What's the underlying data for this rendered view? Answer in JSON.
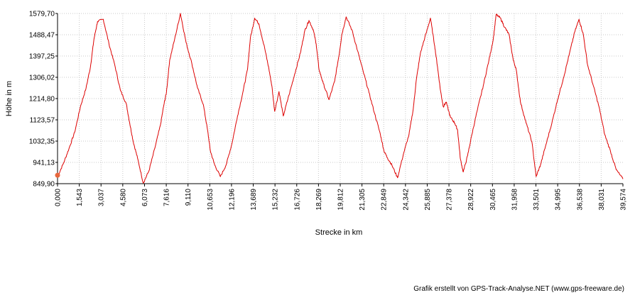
{
  "chart_data": {
    "type": "line",
    "xlabel": "Strecke  in  km",
    "ylabel": "Höhe  in  m",
    "xlim": [
      0,
      39.574
    ],
    "ylim": [
      849.9,
      1579.7
    ],
    "grid": true,
    "x_ticks": [
      "0,000",
      "1,543",
      "3,037",
      "4,580",
      "6,073",
      "7,616",
      "9,110",
      "10,653",
      "12,196",
      "13,689",
      "15,232",
      "16,726",
      "18,269",
      "19,812",
      "21,305",
      "22,849",
      "24,342",
      "25,885",
      "27,378",
      "28,922",
      "30,465",
      "31,958",
      "33,501",
      "34,995",
      "36,538",
      "38,031",
      "39,574"
    ],
    "y_ticks": [
      "849,90",
      "941,13",
      "1032,35",
      "1123,57",
      "1214,80",
      "1306,02",
      "1397,25",
      "1488,47",
      "1579,70"
    ],
    "line_color": "#dd0000",
    "start_marker_color": "#e8673c",
    "series": [
      {
        "x": [
          0.0,
          0.4,
          0.8,
          1.2,
          1.6,
          2.0,
          2.3,
          2.55,
          2.8,
          3.2,
          3.6,
          4.0,
          4.4,
          4.8,
          5.05,
          5.3,
          5.6,
          6.0,
          6.4,
          6.8,
          7.2,
          7.45,
          7.62,
          7.85,
          8.2,
          8.6,
          9.0,
          9.4,
          9.8,
          10.2,
          10.5,
          10.7,
          11.0,
          11.4,
          11.8,
          12.2,
          12.6,
          13.0,
          13.3,
          13.5,
          13.8,
          14.1,
          14.5,
          14.8,
          15.0,
          15.2,
          15.5,
          15.8,
          16.2,
          16.6,
          17.0,
          17.3,
          17.6,
          17.9,
          18.1,
          18.3,
          18.6,
          19.0,
          19.4,
          19.7,
          19.9,
          20.2,
          20.6,
          21.0,
          21.4,
          21.8,
          22.2,
          22.6,
          22.85,
          23.1,
          23.4,
          23.8,
          24.2,
          24.6,
          24.9,
          25.1,
          25.4,
          25.8,
          26.1,
          26.4,
          26.6,
          26.8,
          27.0,
          27.2,
          27.5,
          27.8,
          28.0,
          28.2,
          28.4,
          28.7,
          29.0,
          29.4,
          29.8,
          30.2,
          30.5,
          30.7,
          31.0,
          31.3,
          31.6,
          31.9,
          32.1,
          32.4,
          32.8,
          33.2,
          33.5,
          33.8,
          34.2,
          34.6,
          35.0,
          35.4,
          35.8,
          36.2,
          36.5,
          36.8,
          37.1,
          37.5,
          37.9,
          38.3,
          38.7,
          39.1,
          39.574
        ],
        "y": [
          880,
          935,
          1000,
          1070,
          1180,
          1260,
          1350,
          1470,
          1545,
          1555,
          1450,
          1360,
          1250,
          1195,
          1110,
          1030,
          960,
          852,
          905,
          1000,
          1100,
          1190,
          1240,
          1380,
          1470,
          1580,
          1455,
          1365,
          1260,
          1190,
          1080,
          990,
          930,
          880,
          930,
          1020,
          1140,
          1250,
          1340,
          1475,
          1560,
          1535,
          1430,
          1340,
          1270,
          1160,
          1245,
          1140,
          1230,
          1320,
          1410,
          1505,
          1550,
          1510,
          1450,
          1340,
          1280,
          1210,
          1290,
          1400,
          1490,
          1565,
          1510,
          1420,
          1330,
          1240,
          1150,
          1060,
          990,
          960,
          930,
          875,
          975,
          1060,
          1170,
          1290,
          1410,
          1495,
          1560,
          1440,
          1350,
          1250,
          1180,
          1200,
          1135,
          1110,
          1080,
          955,
          900,
          970,
          1060,
          1170,
          1270,
          1380,
          1470,
          1575,
          1560,
          1520,
          1490,
          1380,
          1340,
          1200,
          1110,
          1030,
          880,
          930,
          1020,
          1110,
          1210,
          1300,
          1400,
          1500,
          1555,
          1490,
          1360,
          1270,
          1180,
          1060,
          990,
          910,
          870
        ]
      }
    ]
  },
  "credit": "Grafik erstellt von GPS-Track-Analyse.NET (www.gps-freeware.de)"
}
